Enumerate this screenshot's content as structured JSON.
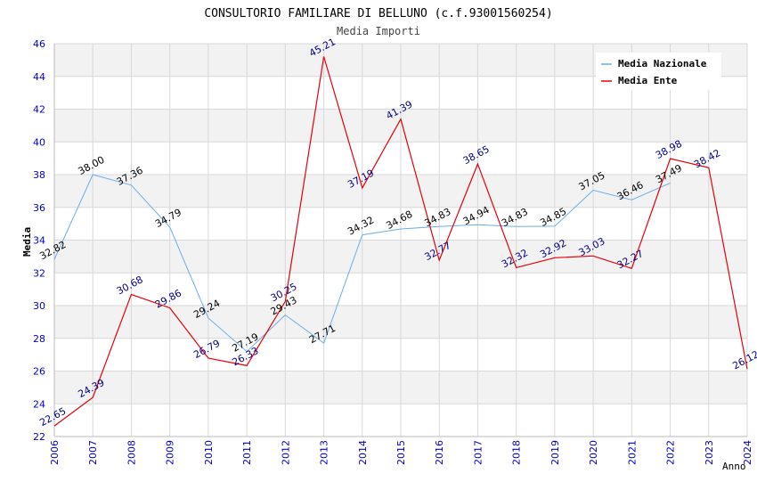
{
  "chart_data": {
    "type": "line",
    "title": "CONSULTORIO FAMILIARE DI BELLUNO (c.f.93001560254)",
    "subtitle": "Media Importi",
    "xlabel": "Anno",
    "ylabel": "Media",
    "ylim": [
      22,
      46
    ],
    "yticks": [
      "22",
      "24",
      "26",
      "28",
      "30",
      "32",
      "34",
      "36",
      "38",
      "40",
      "42",
      "44",
      "46"
    ],
    "categories": [
      "2006",
      "2007",
      "2008",
      "2009",
      "2010",
      "2011",
      "2012",
      "2013",
      "2014",
      "2015",
      "2016",
      "2017",
      "2018",
      "2019",
      "2020",
      "2021",
      "2022",
      "2023",
      "2024"
    ],
    "grid": true,
    "legend_position": "top-right",
    "series": [
      {
        "name": "Media Nazionale",
        "color": "#6aaee8",
        "label_color": "#000000",
        "values": [
          32.82,
          38.0,
          37.36,
          34.79,
          29.24,
          27.19,
          29.43,
          27.71,
          34.32,
          34.68,
          34.83,
          34.94,
          34.83,
          34.85,
          37.05,
          36.46,
          37.49,
          null,
          null
        ],
        "labels": [
          "32.82",
          "38.00",
          "37.36",
          "34.79",
          "29.24",
          "27.19",
          "29.43",
          "27.71",
          "34.32",
          "34.68",
          "34.83",
          "34.94",
          "34.83",
          "34.85",
          "37.05",
          "36.46",
          "37.49",
          null,
          null
        ]
      },
      {
        "name": "Media Ente",
        "color": "#e8000b",
        "label_color": "#000080",
        "values": [
          22.65,
          24.39,
          30.68,
          29.86,
          26.79,
          26.33,
          30.25,
          45.21,
          37.19,
          41.39,
          32.77,
          38.65,
          32.32,
          32.92,
          33.03,
          32.27,
          38.98,
          38.42,
          26.12
        ],
        "labels": [
          "22.65",
          "24.39",
          "30.68",
          "29.86",
          "26.79",
          "26.33",
          "30.25",
          "45.21",
          "37.19",
          "41.39",
          "32.77",
          "38.65",
          "32.32",
          "32.92",
          "33.03",
          "32.27",
          "38.98",
          "38.42",
          "26.12"
        ]
      }
    ],
    "colors": {
      "band": "#f2f2f2",
      "gridline": "#d8d8d8",
      "tick_text": "#0000cc",
      "title_text": "#000000",
      "subtitle_text": "#444444"
    }
  }
}
